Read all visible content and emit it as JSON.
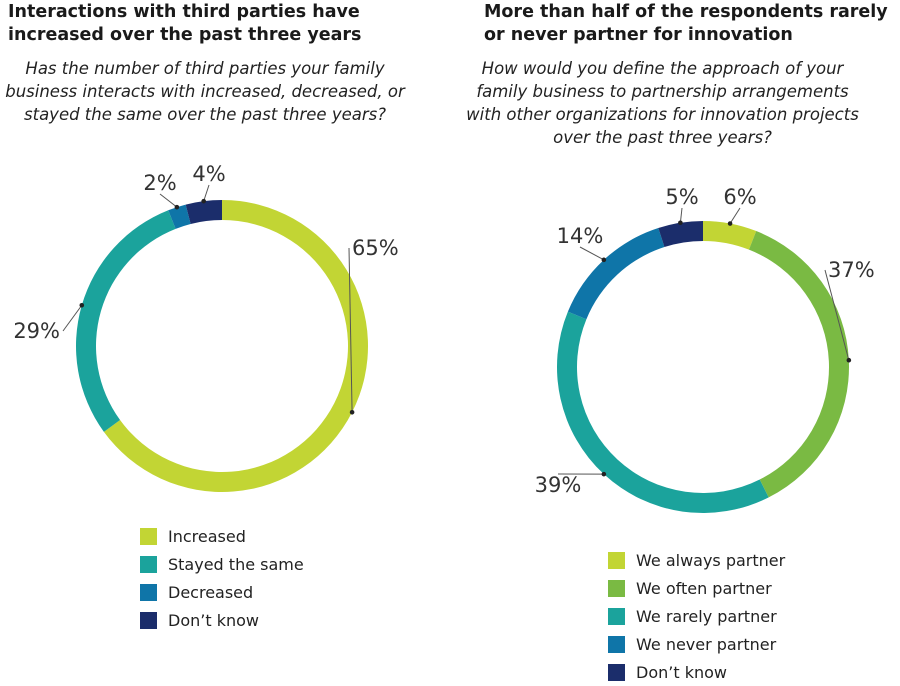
{
  "chart_data": [
    {
      "type": "pie",
      "donut": true,
      "title": "Interactions with third parties have increased over the past three years",
      "subtitle": "Has the number of third parties your family business interacts with increased, decreased, or stayed the same over the past three years?",
      "categories": [
        "Increased",
        "Stayed the same",
        "Decreased",
        "Don’t know"
      ],
      "values": [
        65,
        29,
        2,
        4
      ],
      "value_labels": [
        "65%",
        "29%",
        "2%",
        "4%"
      ],
      "colors": [
        "#c2d534",
        "#1ba39c",
        "#0f75a8",
        "#1b2d6b"
      ],
      "legend_position": "bottom"
    },
    {
      "type": "pie",
      "donut": true,
      "title": "More than half of the respondents rarely or never partner for innovation",
      "subtitle": "How would you define the approach of your family business to partnership arrangements with other organizations for innovation projects over the past three years?",
      "categories": [
        "We always partner",
        "We often partner",
        "We rarely partner",
        "We never partner",
        "Don’t know"
      ],
      "values": [
        6,
        37,
        39,
        14,
        5
      ],
      "value_labels": [
        "6%",
        "37%",
        "39%",
        "14%",
        "5%"
      ],
      "colors": [
        "#c2d534",
        "#7aba43",
        "#1ba39c",
        "#0f75a8",
        "#1b2d6b"
      ],
      "legend_position": "bottom"
    }
  ]
}
